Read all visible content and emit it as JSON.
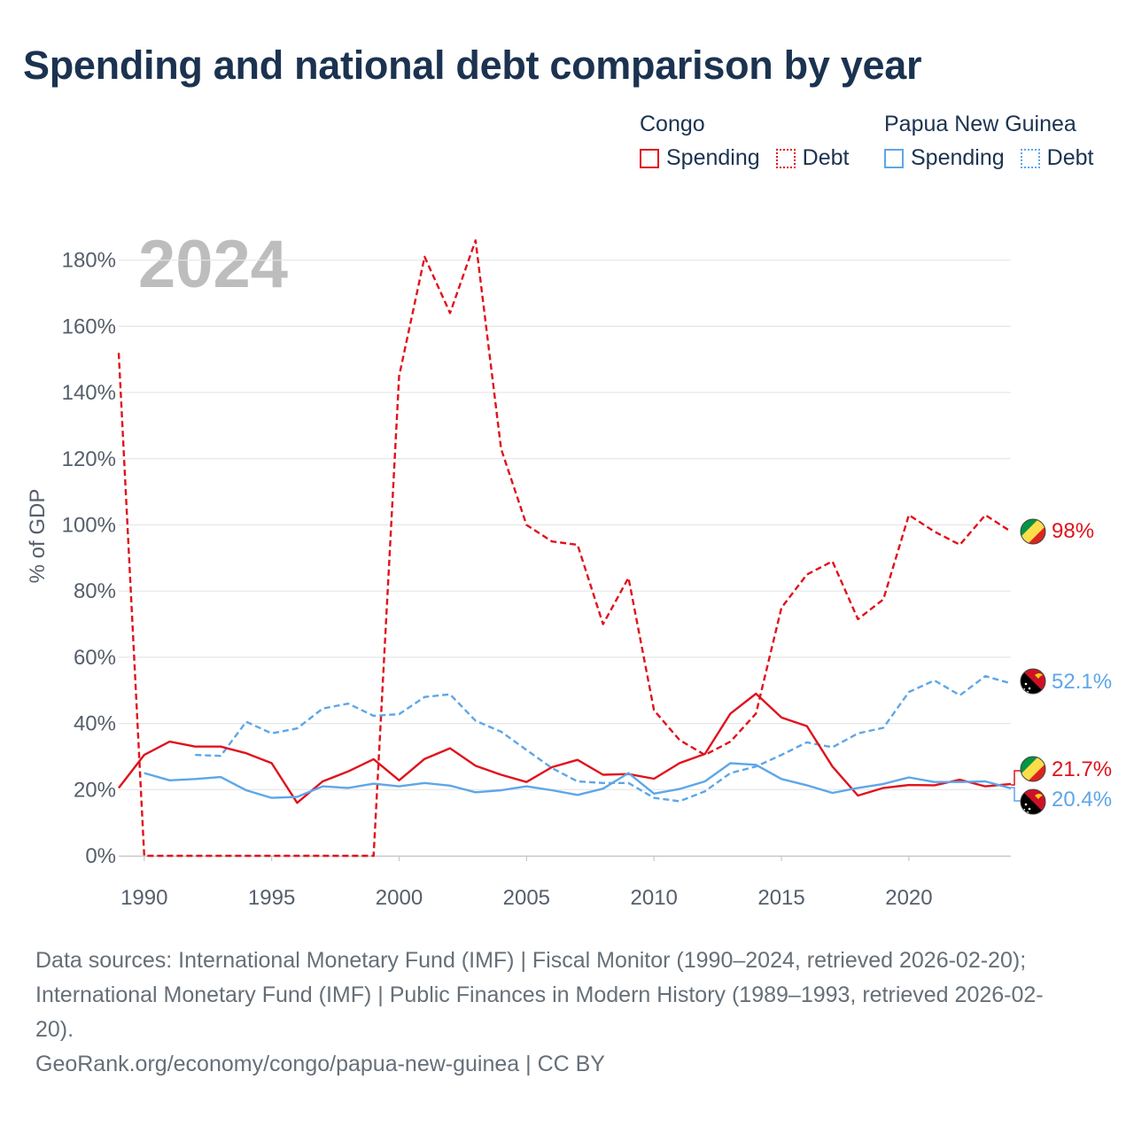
{
  "title": "Spending and national debt comparison by year",
  "legend": {
    "groups": [
      {
        "name": "Congo",
        "items": [
          {
            "label": "Spending",
            "style": "solid",
            "color": "#e0121c"
          },
          {
            "label": "Debt",
            "style": "dotted",
            "color": "#e0121c"
          }
        ]
      },
      {
        "name": "Papua New Guinea",
        "items": [
          {
            "label": "Spending",
            "style": "solid",
            "color": "#5ea6e8"
          },
          {
            "label": "Debt",
            "style": "dotted",
            "color": "#5ea6e8"
          }
        ]
      }
    ]
  },
  "chart_data": {
    "type": "line",
    "current_year": "2024",
    "ylabel": "% of GDP",
    "xlabel": "",
    "xlim": [
      1989,
      2024
    ],
    "ylim": [
      0,
      185
    ],
    "x_ticks": [
      1990,
      1995,
      2000,
      2005,
      2010,
      2015,
      2020
    ],
    "y_ticks": [
      0,
      20,
      40,
      60,
      80,
      100,
      120,
      140,
      160,
      180
    ],
    "y_tick_labels": [
      "0%",
      "20%",
      "40%",
      "60%",
      "80%",
      "100%",
      "120%",
      "140%",
      "160%",
      "180%"
    ],
    "grid": true,
    "series": [
      {
        "name": "Congo Debt",
        "country": "Congo",
        "measure": "Debt",
        "color": "#e0121c",
        "dashed": true,
        "x": [
          1989,
          1990,
          1991,
          1992,
          1993,
          1994,
          1995,
          1996,
          1997,
          1998,
          1999,
          2000,
          2001,
          2002,
          2003,
          2004,
          2005,
          2006,
          2007,
          2008,
          2009,
          2010,
          2011,
          2012,
          2013,
          2014,
          2015,
          2016,
          2017,
          2018,
          2019,
          2020,
          2021,
          2022,
          2023,
          2024
        ],
        "values": [
          152,
          0,
          0,
          0,
          0,
          0,
          0,
          0,
          0,
          0,
          0,
          145,
          181,
          164,
          186,
          123,
          100,
          95,
          94,
          70,
          84,
          44,
          35,
          30.5,
          34.5,
          43,
          75,
          85,
          89,
          71.5,
          77.5,
          103,
          98,
          94,
          103,
          98
        ],
        "end_label": "98%"
      },
      {
        "name": "PNG Debt",
        "country": "Papua New Guinea",
        "measure": "Debt",
        "color": "#5ea6e8",
        "dashed": true,
        "x": [
          1992,
          1993,
          1994,
          1995,
          1996,
          1997,
          1998,
          1999,
          2000,
          2001,
          2002,
          2003,
          2004,
          2005,
          2006,
          2007,
          2008,
          2009,
          2010,
          2011,
          2012,
          2013,
          2014,
          2015,
          2016,
          2017,
          2018,
          2019,
          2020,
          2021,
          2022,
          2023,
          2024
        ],
        "values": [
          30.5,
          30.2,
          40.5,
          37,
          38.5,
          44.5,
          46,
          42.3,
          42.8,
          48,
          48.8,
          40.8,
          37.5,
          32,
          26.5,
          22.5,
          22,
          22,
          17.5,
          16.5,
          19.5,
          25,
          27,
          30.5,
          34.3,
          32.8,
          37,
          38.7,
          49.5,
          53,
          48.5,
          54.3,
          52.1
        ],
        "end_label": "52.1%"
      },
      {
        "name": "Congo Spending",
        "country": "Congo",
        "measure": "Spending",
        "color": "#e0121c",
        "dashed": false,
        "x": [
          1989,
          1990,
          1991,
          1992,
          1993,
          1994,
          1995,
          1996,
          1997,
          1998,
          1999,
          2000,
          2001,
          2002,
          2003,
          2004,
          2005,
          2006,
          2007,
          2008,
          2009,
          2010,
          2011,
          2012,
          2013,
          2014,
          2015,
          2016,
          2017,
          2018,
          2019,
          2020,
          2021,
          2022,
          2023,
          2024
        ],
        "values": [
          20.5,
          30.5,
          34.5,
          33,
          33,
          31,
          28,
          16,
          22.5,
          25.5,
          29.2,
          22.8,
          29.3,
          32.5,
          27.2,
          24.5,
          22.3,
          26.8,
          29,
          24.5,
          24.7,
          23.3,
          28,
          30.8,
          43,
          49,
          41.8,
          39.2,
          27,
          18.2,
          20.5,
          21.4,
          21.3,
          23,
          21,
          21.7
        ],
        "end_label": "21.7%"
      },
      {
        "name": "PNG Spending",
        "country": "Papua New Guinea",
        "measure": "Spending",
        "color": "#5ea6e8",
        "dashed": false,
        "x": [
          1990,
          1991,
          1992,
          1993,
          1994,
          1995,
          1996,
          1997,
          1998,
          1999,
          2000,
          2001,
          2002,
          2003,
          2004,
          2005,
          2006,
          2007,
          2008,
          2009,
          2010,
          2011,
          2012,
          2013,
          2014,
          2015,
          2016,
          2017,
          2018,
          2019,
          2020,
          2021,
          2022,
          2023,
          2024
        ],
        "values": [
          25,
          22.8,
          23.2,
          23.8,
          19.8,
          17.5,
          17.8,
          21,
          20.5,
          21.8,
          21,
          22,
          21.2,
          19.2,
          19.8,
          21,
          19.8,
          18.4,
          20.3,
          25,
          18.8,
          20.2,
          22.5,
          28,
          27.5,
          23.2,
          21.3,
          19,
          20.5,
          21.7,
          23.7,
          22.3,
          22.3,
          22.5,
          20.4
        ],
        "end_label": "20.4%"
      }
    ]
  },
  "footer": {
    "sources_line1": "Data sources: International Monetary Fund (IMF) | Fiscal Monitor (1990–2024, retrieved 2026-02-20);",
    "sources_line2": "International Monetary Fund (IMF) | Public Finances in Modern History (1989–1993, retrieved 2026-02-",
    "sources_line3": "20).",
    "credit": "GeoRank.org/economy/congo/papua-new-guinea | CC BY"
  }
}
